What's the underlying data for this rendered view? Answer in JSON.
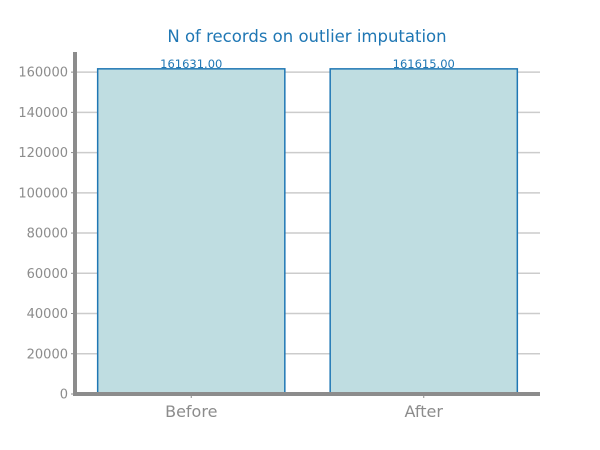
{
  "chart_data": {
    "type": "bar",
    "title": "N of records on outlier imputation",
    "categories": [
      "Before",
      "After"
    ],
    "values": [
      161631,
      161615
    ],
    "data_labels": [
      "161631.00",
      "161615.00"
    ],
    "xlabel": "",
    "ylabel": "",
    "ylim": [
      0,
      170000
    ],
    "yticks": [
      0,
      20000,
      40000,
      60000,
      80000,
      100000,
      120000,
      140000,
      160000
    ],
    "ytick_labels": [
      "0",
      "20000",
      "40000",
      "60000",
      "80000",
      "100000",
      "120000",
      "140000",
      "160000"
    ],
    "grid": "horizontal",
    "legend": "none"
  },
  "colors": {
    "bar_fill": "#bfdde1",
    "bar_edge": "#1f77b4",
    "title": "#1f77b4",
    "data_label": "#1f77b4",
    "axis": "#8c8c8c",
    "grid": "#cccccc"
  }
}
